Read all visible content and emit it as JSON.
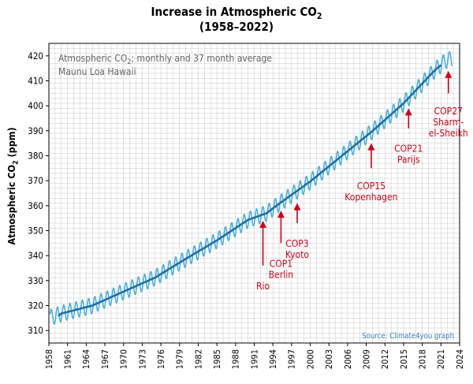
{
  "title_line1": "Increase in Atmospheric CO",
  "title_line1_sub": "2",
  "title_line2": "(1958–2022)",
  "legend_line1_pre": "Atmospheric CO",
  "legend_line1_sub": "2",
  "legend_line1_post": "; monthly and 37 month average",
  "legend_line2": "Maunu Loa Hawaii",
  "source": "Source: Climate4you graph",
  "colors": {
    "monthly": "#4aaee2",
    "average": "#1f6fa6",
    "annotation": "#d0021b",
    "grid": "#c8c8c8",
    "source": "#3a7fc0",
    "legend_text": "#666666"
  },
  "chart_data": {
    "type": "line",
    "title": "Increase in Atmospheric CO2 (1958–2022)",
    "ylabel": "Atmospheric CO2 (ppm)",
    "ylabel_pre": "Atmospheric CO",
    "ylabel_sub": "2",
    "ylabel_post": " (ppm)",
    "xlim": [
      1958,
      2024
    ],
    "ylim": [
      305,
      425
    ],
    "grid": true,
    "x_ticks": [
      1958,
      1961,
      1964,
      1967,
      1970,
      1973,
      1976,
      1979,
      1982,
      1985,
      1988,
      1991,
      1994,
      1997,
      2000,
      2003,
      2006,
      2009,
      2012,
      2015,
      2018,
      2021,
      2024
    ],
    "y_ticks": [
      310,
      320,
      330,
      340,
      350,
      360,
      370,
      380,
      390,
      400,
      410,
      420
    ],
    "series": [
      {
        "name": "Monthly",
        "style": "seasonal",
        "seasonal_amplitude_ppm": 3.2,
        "x_start": 1958.2,
        "x_end": 2022.8,
        "trend_years": [
          1958,
          1960,
          1965,
          1970,
          1975,
          1980,
          1985,
          1990,
          1993,
          1995,
          2000,
          2005,
          2010,
          2015,
          2020,
          2022
        ],
        "trend_ppm": [
          315.0,
          316.8,
          320.0,
          325.6,
          331.1,
          338.7,
          346.1,
          354.3,
          357.0,
          360.8,
          369.7,
          379.8,
          389.9,
          401.0,
          414.2,
          418.5
        ]
      },
      {
        "name": "37 month average",
        "years": [
          1959.5,
          1960,
          1965,
          1970,
          1975,
          1980,
          1985,
          1990,
          1993,
          1995,
          2000,
          2005,
          2010,
          2015,
          2020,
          2021
        ],
        "ppm": [
          315.8,
          316.8,
          320.0,
          325.6,
          331.1,
          338.7,
          346.1,
          354.3,
          357.0,
          360.8,
          369.7,
          379.8,
          389.9,
          401.0,
          414.2,
          416.3
        ]
      }
    ],
    "annotations": [
      {
        "lines": [
          "Rio"
        ],
        "year": 1992.4,
        "arrow_top_ppm": 354,
        "arrow_bottom_ppm": 336,
        "label_top_ppm": 330
      },
      {
        "lines": [
          "COP1",
          "Berlin"
        ],
        "year": 1995.3,
        "arrow_top_ppm": 358,
        "arrow_bottom_ppm": 345,
        "label_top_ppm": 339
      },
      {
        "lines": [
          "COP3",
          "Kyoto"
        ],
        "year": 1997.9,
        "arrow_top_ppm": 361,
        "arrow_bottom_ppm": 353,
        "label_top_ppm": 347
      },
      {
        "lines": [
          "COP15",
          "Kopenhagen"
        ],
        "year": 2009.8,
        "arrow_top_ppm": 385,
        "arrow_bottom_ppm": 375,
        "label_top_ppm": 370
      },
      {
        "lines": [
          "COP21",
          "Parijs"
        ],
        "year": 2015.8,
        "arrow_top_ppm": 399,
        "arrow_bottom_ppm": 391,
        "label_top_ppm": 385
      },
      {
        "lines": [
          "COP27",
          "Sharm-",
          "el-Sheikh"
        ],
        "year": 2022.2,
        "arrow_top_ppm": 414,
        "arrow_bottom_ppm": 405,
        "label_top_ppm": 400
      }
    ]
  }
}
